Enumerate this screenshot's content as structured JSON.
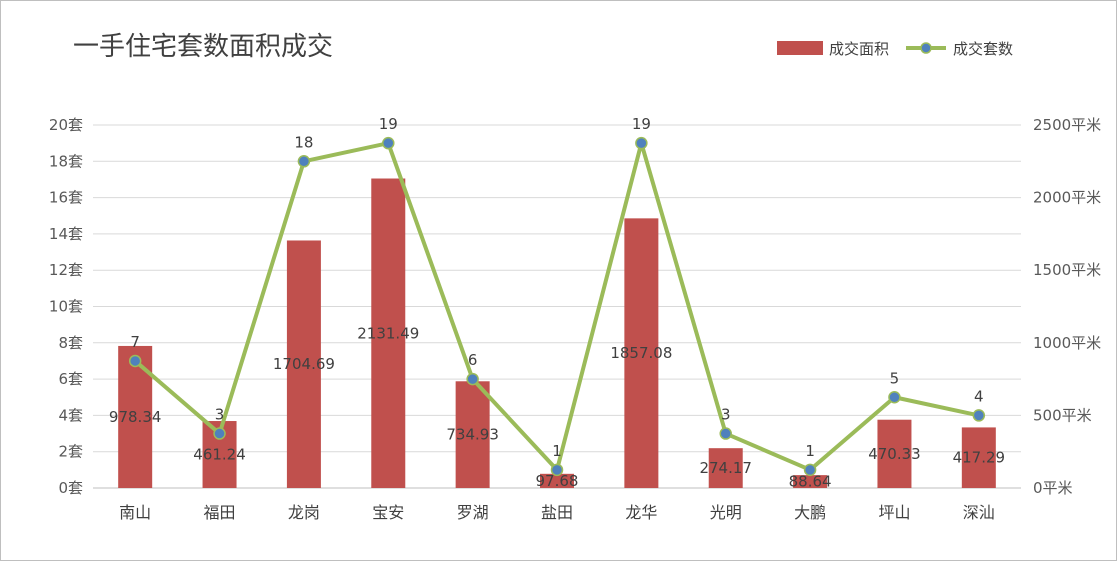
{
  "chart_data": {
    "type": "bar",
    "title": "一手住宅套数面积成交",
    "categories": [
      "南山",
      "福田",
      "龙岗",
      "宝安",
      "罗湖",
      "盐田",
      "龙华",
      "光明",
      "大鹏",
      "坪山",
      "深汕"
    ],
    "series": [
      {
        "name": "成交面积",
        "type": "bar",
        "axis": "right",
        "color": "#c0504d",
        "values": [
          978.34,
          461.24,
          1704.69,
          2131.49,
          734.93,
          97.68,
          1857.08,
          274.17,
          88.64,
          470.33,
          417.29
        ],
        "labels": [
          "978.34",
          "461.24",
          "1704.69",
          "2131.49",
          "734.93",
          "97.68",
          "1857.08",
          "274.17",
          "88.64",
          "470.33",
          "417.29"
        ]
      },
      {
        "name": "成交套数",
        "type": "line",
        "axis": "left",
        "color": "#9bbb59",
        "marker_color": "#4f81bd",
        "values": [
          7,
          3,
          18,
          19,
          6,
          1,
          19,
          3,
          1,
          5,
          4
        ],
        "labels": [
          "7",
          "3",
          "18",
          "19",
          "6",
          "1",
          "19",
          "3",
          "1",
          "5",
          "4"
        ]
      }
    ],
    "y_left": {
      "ylim": [
        0,
        20
      ],
      "ticks": [
        0,
        2,
        4,
        6,
        8,
        10,
        12,
        14,
        16,
        18,
        20
      ],
      "tick_labels": [
        "0套",
        "2套",
        "4套",
        "6套",
        "8套",
        "10套",
        "12套",
        "14套",
        "16套",
        "18套",
        "20套"
      ]
    },
    "y_right": {
      "ylim": [
        0,
        2500
      ],
      "ticks": [
        0,
        500,
        1000,
        1500,
        2000,
        2500
      ],
      "tick_labels": [
        "0平米",
        "500平米",
        "1000平米",
        "1500平米",
        "2000平米",
        "2500平米"
      ]
    },
    "grid": true,
    "legend_position": "top-right"
  }
}
